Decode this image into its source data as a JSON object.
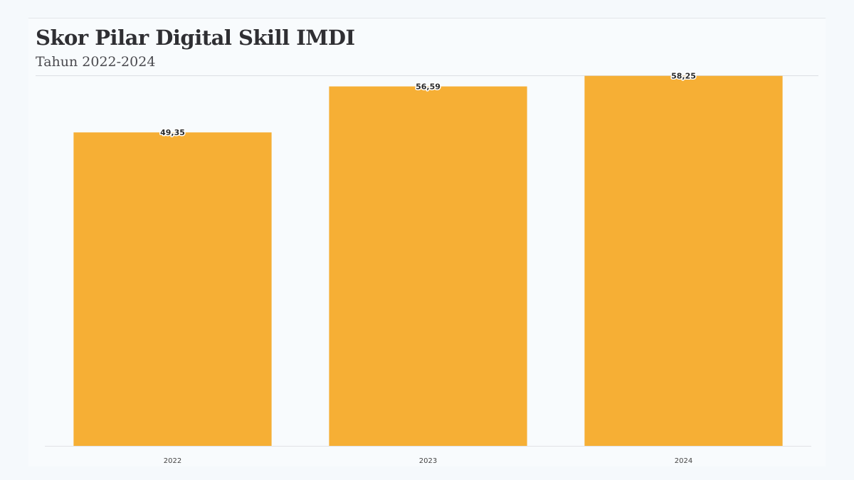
{
  "header": {
    "title": "Skor Pilar Digital Skill IMDI",
    "subtitle": "Tahun 2022-2024"
  },
  "colors": {
    "bar": "#f6af35",
    "axis": "#e0e2e5"
  },
  "chart_data": {
    "type": "bar",
    "title": "Skor Pilar Digital Skill IMDI",
    "subtitle": "Tahun 2022-2024",
    "categories": [
      "2022",
      "2023",
      "2024"
    ],
    "values": [
      49.35,
      56.59,
      58.25
    ],
    "value_labels": [
      "49,35",
      "56,59",
      "58,25"
    ],
    "ylim": [
      0,
      59
    ],
    "grid": false,
    "legend": "none"
  }
}
